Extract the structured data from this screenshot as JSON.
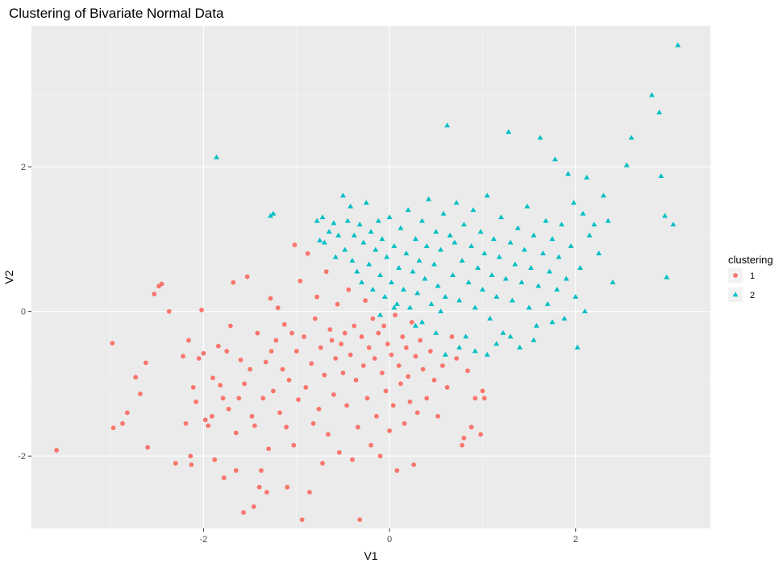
{
  "chart_data": {
    "type": "scatter",
    "title": "Clustering of Bivariate Normal Data",
    "xlabel": "V1",
    "ylabel": "V2",
    "xlim": [
      -3.85,
      3.45
    ],
    "ylim": [
      -3.0,
      3.95
    ],
    "x_ticks": [
      -2,
      0,
      2
    ],
    "y_ticks": [
      -2,
      0,
      2
    ],
    "x_tick_labels": [
      "-2",
      "0",
      "2"
    ],
    "y_tick_labels": [
      "-2",
      "0",
      "2"
    ],
    "grid": true,
    "legend": {
      "title": "clustering",
      "position": "right"
    },
    "series": [
      {
        "name": "1",
        "color": "#F8766D",
        "shape": "circle",
        "points": [
          [
            -3.58,
            -1.92
          ],
          [
            -2.98,
            -0.44
          ],
          [
            -2.97,
            -1.61
          ],
          [
            -2.87,
            -1.55
          ],
          [
            -2.82,
            -1.4
          ],
          [
            -2.73,
            -0.91
          ],
          [
            -2.68,
            -1.14
          ],
          [
            -2.62,
            -0.71
          ],
          [
            -2.6,
            -1.88
          ],
          [
            -2.53,
            0.24
          ],
          [
            -2.48,
            0.35
          ],
          [
            -2.45,
            0.38
          ],
          [
            -2.37,
            0.0
          ],
          [
            -2.3,
            -2.1
          ],
          [
            -2.22,
            -0.62
          ],
          [
            -2.19,
            -1.55
          ],
          [
            -2.16,
            -0.4
          ],
          [
            -2.14,
            -2.0
          ],
          [
            -2.13,
            -2.12
          ],
          [
            -2.11,
            -1.05
          ],
          [
            -2.08,
            -1.25
          ],
          [
            -2.05,
            -0.65
          ],
          [
            -2.02,
            0.02
          ],
          [
            -2.0,
            -0.58
          ],
          [
            -1.98,
            -1.5
          ],
          [
            -1.95,
            -1.58
          ],
          [
            -1.91,
            -1.45
          ],
          [
            -1.9,
            -0.92
          ],
          [
            -1.84,
            -0.48
          ],
          [
            -1.82,
            -1.02
          ],
          [
            -1.79,
            -1.2
          ],
          [
            -1.75,
            -0.55
          ],
          [
            -1.73,
            -1.35
          ],
          [
            -1.71,
            -0.2
          ],
          [
            -1.68,
            0.4
          ],
          [
            -1.65,
            -1.68
          ],
          [
            -1.62,
            -1.2
          ],
          [
            -1.6,
            -0.67
          ],
          [
            -1.56,
            -1.0
          ],
          [
            -1.53,
            0.48
          ],
          [
            -1.5,
            -0.8
          ],
          [
            -1.48,
            -1.45
          ],
          [
            -1.45,
            -1.58
          ],
          [
            -1.42,
            -0.3
          ],
          [
            -1.38,
            -2.2
          ],
          [
            -1.36,
            -1.2
          ],
          [
            -1.33,
            -0.7
          ],
          [
            -1.3,
            -1.9
          ],
          [
            -1.27,
            -0.55
          ],
          [
            -1.25,
            -1.1
          ],
          [
            -1.22,
            -0.4
          ],
          [
            -1.2,
            0.05
          ],
          [
            -1.18,
            -1.4
          ],
          [
            -1.15,
            -0.8
          ],
          [
            -1.13,
            -0.18
          ],
          [
            -1.11,
            -1.6
          ],
          [
            -1.08,
            -0.95
          ],
          [
            -1.05,
            -0.3
          ],
          [
            -1.03,
            -1.85
          ],
          [
            -1.0,
            -0.55
          ],
          [
            -0.98,
            -1.22
          ],
          [
            -0.96,
            0.42
          ],
          [
            -0.94,
            -2.88
          ],
          [
            -0.92,
            -0.35
          ],
          [
            -0.9,
            -1.05
          ],
          [
            -0.88,
            0.8
          ],
          [
            -0.86,
            -2.5
          ],
          [
            -0.84,
            -0.72
          ],
          [
            -0.82,
            -1.55
          ],
          [
            -0.8,
            -0.1
          ],
          [
            -0.78,
            0.2
          ],
          [
            -0.76,
            -1.35
          ],
          [
            -0.74,
            -0.5
          ],
          [
            -0.72,
            -2.1
          ],
          [
            -0.7,
            -0.88
          ],
          [
            -0.68,
            0.55
          ],
          [
            -0.66,
            -1.7
          ],
          [
            -0.64,
            -0.25
          ],
          [
            -0.62,
            -0.4
          ],
          [
            -0.6,
            -1.15
          ],
          [
            -0.58,
            -0.65
          ],
          [
            -0.56,
            0.1
          ],
          [
            -0.54,
            -1.95
          ],
          [
            -0.52,
            -0.45
          ],
          [
            -0.5,
            -0.85
          ],
          [
            -0.48,
            -0.3
          ],
          [
            -0.46,
            -1.3
          ],
          [
            -0.44,
            0.3
          ],
          [
            -0.42,
            -0.6
          ],
          [
            -0.4,
            -2.05
          ],
          [
            -0.38,
            -0.2
          ],
          [
            -0.36,
            -0.95
          ],
          [
            -0.34,
            -1.6
          ],
          [
            -0.32,
            -2.88
          ],
          [
            -0.3,
            -0.35
          ],
          [
            -0.28,
            -0.75
          ],
          [
            -0.26,
            0.15
          ],
          [
            -0.24,
            -1.2
          ],
          [
            -0.22,
            -0.5
          ],
          [
            -0.2,
            -1.85
          ],
          [
            -0.18,
            -0.1
          ],
          [
            -0.16,
            -0.65
          ],
          [
            -0.14,
            -1.45
          ],
          [
            -0.12,
            -0.3
          ],
          [
            -0.1,
            -2.0
          ],
          [
            -0.08,
            -0.85
          ],
          [
            -0.06,
            -0.2
          ],
          [
            -0.04,
            -1.1
          ],
          [
            -0.02,
            -0.45
          ],
          [
            0.0,
            -1.65
          ],
          [
            0.02,
            -0.6
          ],
          [
            0.04,
            -1.3
          ],
          [
            0.06,
            -0.05
          ],
          [
            0.08,
            -2.2
          ],
          [
            0.1,
            -0.75
          ],
          [
            0.12,
            -1.0
          ],
          [
            0.14,
            -0.35
          ],
          [
            0.16,
            -1.55
          ],
          [
            0.18,
            -0.5
          ],
          [
            0.2,
            -0.9
          ],
          [
            0.22,
            -1.25
          ],
          [
            0.24,
            -0.15
          ],
          [
            0.26,
            -2.12
          ],
          [
            0.28,
            -0.62
          ],
          [
            0.3,
            -1.4
          ],
          [
            0.33,
            -0.4
          ],
          [
            0.36,
            -0.8
          ],
          [
            0.4,
            -1.2
          ],
          [
            0.44,
            -0.55
          ],
          [
            0.48,
            -0.95
          ],
          [
            0.52,
            -1.45
          ],
          [
            0.57,
            -0.75
          ],
          [
            0.62,
            -1.05
          ],
          [
            0.67,
            -0.35
          ],
          [
            0.72,
            -0.65
          ],
          [
            0.78,
            -1.85
          ],
          [
            0.8,
            -1.75
          ],
          [
            0.84,
            -0.82
          ],
          [
            0.88,
            -1.6
          ],
          [
            0.92,
            -1.2
          ],
          [
            0.98,
            -1.7
          ],
          [
            1.0,
            -1.1
          ],
          [
            1.02,
            -1.2
          ],
          [
            -1.57,
            -2.78
          ],
          [
            -1.46,
            -2.7
          ],
          [
            -1.4,
            -2.43
          ],
          [
            -1.32,
            -2.5
          ],
          [
            -1.1,
            -2.43
          ],
          [
            -1.65,
            -2.2
          ],
          [
            -1.78,
            -2.3
          ],
          [
            -1.88,
            -2.05
          ],
          [
            -1.28,
            0.18
          ],
          [
            -1.02,
            0.92
          ]
        ]
      },
      {
        "name": "2",
        "color": "#00BFC4",
        "shape": "triangle",
        "points": [
          [
            -1.86,
            2.13
          ],
          [
            -1.28,
            1.32
          ],
          [
            -1.25,
            1.35
          ],
          [
            -0.78,
            1.25
          ],
          [
            -0.75,
            0.98
          ],
          [
            -0.72,
            1.3
          ],
          [
            -0.7,
            0.95
          ],
          [
            -0.65,
            1.1
          ],
          [
            -0.6,
            1.22
          ],
          [
            -0.58,
            0.75
          ],
          [
            -0.55,
            1.05
          ],
          [
            -0.5,
            1.6
          ],
          [
            -0.48,
            0.85
          ],
          [
            -0.45,
            1.25
          ],
          [
            -0.42,
            1.45
          ],
          [
            -0.4,
            0.7
          ],
          [
            -0.38,
            1.05
          ],
          [
            -0.35,
            0.55
          ],
          [
            -0.32,
            1.2
          ],
          [
            -0.3,
            0.4
          ],
          [
            -0.28,
            0.95
          ],
          [
            -0.25,
            1.5
          ],
          [
            -0.22,
            0.65
          ],
          [
            -0.2,
            1.1
          ],
          [
            -0.18,
            0.3
          ],
          [
            -0.15,
            0.85
          ],
          [
            -0.12,
            1.25
          ],
          [
            -0.1,
            0.5
          ],
          [
            -0.08,
            1.0
          ],
          [
            -0.05,
            0.2
          ],
          [
            -0.03,
            0.75
          ],
          [
            0.0,
            1.3
          ],
          [
            0.02,
            0.4
          ],
          [
            0.05,
            0.9
          ],
          [
            0.08,
            0.1
          ],
          [
            0.1,
            0.6
          ],
          [
            0.12,
            1.15
          ],
          [
            0.15,
            0.3
          ],
          [
            0.18,
            0.8
          ],
          [
            0.2,
            1.4
          ],
          [
            0.22,
            0.05
          ],
          [
            0.25,
            0.55
          ],
          [
            0.28,
            1.0
          ],
          [
            0.3,
            0.25
          ],
          [
            0.32,
            0.7
          ],
          [
            0.35,
            1.25
          ],
          [
            0.38,
            0.45
          ],
          [
            0.4,
            0.9
          ],
          [
            0.42,
            1.55
          ],
          [
            0.45,
            0.1
          ],
          [
            0.48,
            0.65
          ],
          [
            0.5,
            1.1
          ],
          [
            0.52,
            0.35
          ],
          [
            0.55,
            0.85
          ],
          [
            0.58,
            1.35
          ],
          [
            0.6,
            0.2
          ],
          [
            0.62,
            2.57
          ],
          [
            0.65,
            1.05
          ],
          [
            0.68,
            0.5
          ],
          [
            0.7,
            0.95
          ],
          [
            0.72,
            1.5
          ],
          [
            0.75,
            0.15
          ],
          [
            0.78,
            0.7
          ],
          [
            0.8,
            1.2
          ],
          [
            0.82,
            -0.35
          ],
          [
            0.85,
            0.4
          ],
          [
            0.88,
            0.9
          ],
          [
            0.9,
            1.4
          ],
          [
            0.92,
            0.05
          ],
          [
            0.95,
            0.6
          ],
          [
            0.98,
            1.1
          ],
          [
            1.0,
            0.3
          ],
          [
            1.02,
            0.8
          ],
          [
            1.05,
            1.6
          ],
          [
            1.08,
            -0.1
          ],
          [
            1.1,
            0.5
          ],
          [
            1.12,
            1.0
          ],
          [
            1.15,
            0.2
          ],
          [
            1.18,
            0.75
          ],
          [
            1.2,
            1.3
          ],
          [
            1.22,
            -0.3
          ],
          [
            1.25,
            0.45
          ],
          [
            1.28,
            2.48
          ],
          [
            1.3,
            0.95
          ],
          [
            1.32,
            0.15
          ],
          [
            1.35,
            0.65
          ],
          [
            1.38,
            1.15
          ],
          [
            1.4,
            -0.5
          ],
          [
            1.42,
            0.4
          ],
          [
            1.45,
            0.85
          ],
          [
            1.48,
            1.45
          ],
          [
            1.5,
            0.05
          ],
          [
            1.52,
            0.6
          ],
          [
            1.55,
            1.05
          ],
          [
            1.58,
            -0.2
          ],
          [
            1.6,
            0.35
          ],
          [
            1.62,
            2.4
          ],
          [
            1.65,
            0.8
          ],
          [
            1.68,
            1.25
          ],
          [
            1.7,
            0.1
          ],
          [
            1.72,
            0.55
          ],
          [
            1.75,
            1.0
          ],
          [
            1.78,
            2.1
          ],
          [
            1.8,
            0.3
          ],
          [
            1.82,
            0.75
          ],
          [
            1.85,
            1.2
          ],
          [
            1.88,
            -0.1
          ],
          [
            1.9,
            0.45
          ],
          [
            1.92,
            1.9
          ],
          [
            1.95,
            0.9
          ],
          [
            1.98,
            1.5
          ],
          [
            2.0,
            0.2
          ],
          [
            2.02,
            -0.5
          ],
          [
            2.05,
            0.6
          ],
          [
            2.08,
            1.35
          ],
          [
            2.1,
            0.0
          ],
          [
            2.12,
            1.85
          ],
          [
            2.15,
            1.05
          ],
          [
            2.2,
            1.2
          ],
          [
            2.25,
            0.8
          ],
          [
            2.3,
            1.6
          ],
          [
            2.35,
            1.25
          ],
          [
            2.4,
            0.4
          ],
          [
            2.55,
            2.02
          ],
          [
            2.6,
            2.4
          ],
          [
            2.82,
            2.99
          ],
          [
            2.9,
            2.75
          ],
          [
            2.92,
            1.87
          ],
          [
            2.96,
            1.32
          ],
          [
            2.98,
            0.47
          ],
          [
            3.05,
            1.2
          ],
          [
            3.1,
            3.68
          ],
          [
            0.6,
            -0.6
          ],
          [
            0.75,
            -0.5
          ],
          [
            0.92,
            -0.55
          ],
          [
            1.15,
            -0.45
          ],
          [
            1.3,
            -0.35
          ],
          [
            0.28,
            -0.2
          ],
          [
            0.5,
            -0.3
          ],
          [
            0.05,
            0.05
          ],
          [
            -0.1,
            -0.05
          ],
          [
            0.35,
            -0.15
          ],
          [
            0.55,
            0.0
          ],
          [
            1.05,
            -0.6
          ],
          [
            1.55,
            -0.4
          ],
          [
            1.75,
            -0.15
          ]
        ]
      }
    ]
  }
}
